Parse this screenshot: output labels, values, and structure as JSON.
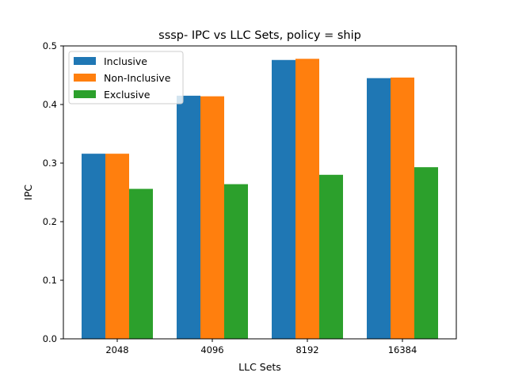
{
  "chart_data": {
    "type": "bar",
    "title": "sssp- IPC vs LLC Sets, policy = ship",
    "xlabel": "LLC Sets",
    "ylabel": "IPC",
    "categories": [
      "2048",
      "4096",
      "8192",
      "16384"
    ],
    "series": [
      {
        "name": "Inclusive",
        "color": "#1f77b4",
        "values": [
          0.316,
          0.415,
          0.476,
          0.445
        ]
      },
      {
        "name": "Non-Inclusive",
        "color": "#ff7f0e",
        "values": [
          0.316,
          0.414,
          0.478,
          0.446
        ]
      },
      {
        "name": "Exclusive",
        "color": "#2ca02c",
        "values": [
          0.256,
          0.264,
          0.28,
          0.293
        ]
      }
    ],
    "ylim": [
      0,
      0.5
    ],
    "yticks": [
      "0.0",
      "0.1",
      "0.2",
      "0.3",
      "0.4",
      "0.5"
    ],
    "grid": false,
    "legend_position": "top-left"
  }
}
